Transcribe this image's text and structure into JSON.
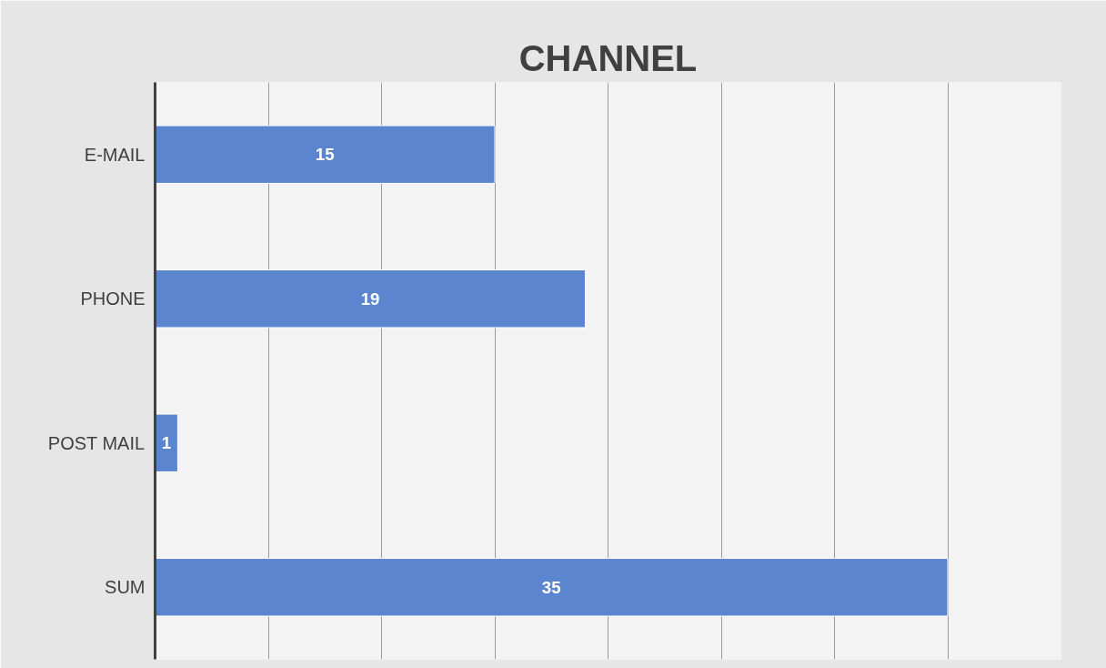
{
  "chart_data": {
    "type": "bar",
    "orientation": "horizontal",
    "title": "CHANNEL",
    "categories": [
      "E-MAIL",
      "PHONE",
      "POST MAIL",
      "SUM"
    ],
    "values": [
      15,
      19,
      1,
      35
    ],
    "color": "#5b85cf",
    "data_labels": true,
    "xlim": [
      0,
      40
    ],
    "xticks": [
      {
        "value": 0,
        "label": null
      },
      {
        "value": 5,
        "label": null
      },
      {
        "value": 10,
        "label": null
      },
      {
        "value": 15,
        "label": null
      },
      {
        "value": 20,
        "label": null
      },
      {
        "value": 25,
        "label": null
      },
      {
        "value": 30,
        "label": null
      },
      {
        "value": 35,
        "label": null
      },
      {
        "value": 40,
        "label": null
      }
    ],
    "tick_labels": "y",
    "grid": "x"
  }
}
